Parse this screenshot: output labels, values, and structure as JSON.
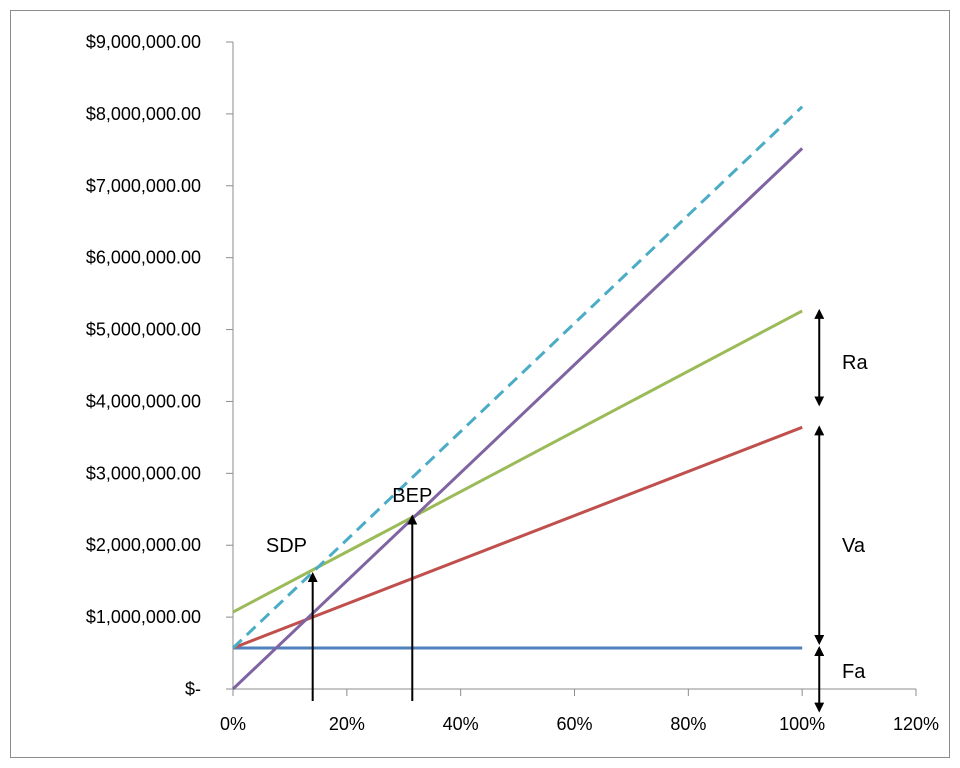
{
  "chart_data": {
    "type": "line",
    "title": "",
    "xlabel": "",
    "ylabel": "",
    "xlim": [
      0,
      120
    ],
    "ylim": [
      0,
      9000000
    ],
    "x_ticks": [
      {
        "value": 0,
        "label": "0%"
      },
      {
        "value": 20,
        "label": "20%"
      },
      {
        "value": 40,
        "label": "40%"
      },
      {
        "value": 60,
        "label": "60%"
      },
      {
        "value": 80,
        "label": "80%"
      },
      {
        "value": 100,
        "label": "100%"
      },
      {
        "value": 120,
        "label": "120%"
      }
    ],
    "y_ticks": [
      {
        "value": 0,
        "label": "$-"
      },
      {
        "value": 1000000,
        "label": "$1,000,000.00"
      },
      {
        "value": 2000000,
        "label": "$2,000,000.00"
      },
      {
        "value": 3000000,
        "label": "$3,000,000.00"
      },
      {
        "value": 4000000,
        "label": "$4,000,000.00"
      },
      {
        "value": 5000000,
        "label": "$5,000,000.00"
      },
      {
        "value": 6000000,
        "label": "$6,000,000.00"
      },
      {
        "value": 7000000,
        "label": "$7,000,000.00"
      },
      {
        "value": 8000000,
        "label": "$8,000,000.00"
      },
      {
        "value": 9000000,
        "label": "$9,000,000.00"
      }
    ],
    "grid": false,
    "legend": "none",
    "series": [
      {
        "color": "#4f81bd",
        "dash": false,
        "x": [
          0,
          100
        ],
        "y": [
          570000,
          570000
        ]
      },
      {
        "color": "#c0504d",
        "dash": false,
        "x": [
          0,
          100
        ],
        "y": [
          570000,
          3640000
        ]
      },
      {
        "color": "#9bbb59",
        "dash": false,
        "x": [
          0,
          100
        ],
        "y": [
          1070000,
          5260000
        ]
      },
      {
        "color": "#8064a2",
        "dash": false,
        "x": [
          0,
          100
        ],
        "y": [
          0,
          7520000
        ]
      },
      {
        "color": "#4bacc6",
        "dash": true,
        "x": [
          0,
          100
        ],
        "y": [
          570000,
          8100000
        ]
      }
    ],
    "annotations": [
      {
        "text": "BEP",
        "x": 31.5,
        "y": 2700000,
        "anchor": "middle"
      },
      {
        "text": "SDP",
        "x": 13,
        "y": 2000000,
        "anchor": "end"
      },
      {
        "text": "Ra",
        "x": 107,
        "y": 4550000,
        "anchor": "start"
      },
      {
        "text": "Va",
        "x": 107,
        "y": 2000000,
        "anchor": "start"
      },
      {
        "text": "Fa",
        "x": 107,
        "y": 250000,
        "anchor": "start"
      }
    ],
    "vertical_arrows": [
      {
        "x": 14,
        "from": 0,
        "to": 1600000
      },
      {
        "x": 31.5,
        "from": 0,
        "to": 2400000
      }
    ],
    "bracket_arrows": [
      {
        "x": 103,
        "from": 3960000,
        "to": 5260000
      },
      {
        "x": 103,
        "from": 640000,
        "to": 3640000
      },
      {
        "x": 103,
        "from": -300000,
        "to": 570000
      }
    ]
  }
}
